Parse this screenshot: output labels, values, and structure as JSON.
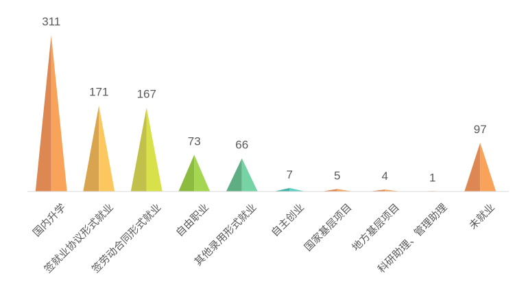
{
  "chart_data": {
    "type": "bar",
    "categories": [
      "国内升学",
      "签就业协议形式就业",
      "签劳动合同形式就业",
      "自由职业",
      "其他录用形式就业",
      "自主创业",
      "国家基层项目",
      "地方基层项目",
      "科研助理、管理助理",
      "未就业"
    ],
    "values": [
      311,
      171,
      167,
      73,
      66,
      7,
      5,
      4,
      1,
      97
    ],
    "value_labels": [
      "311",
      "171",
      "167",
      "73",
      "66",
      "7",
      "5",
      "4",
      "1",
      "97"
    ],
    "title": "",
    "xlabel": "",
    "ylabel": "",
    "ylim": [
      0,
      311
    ],
    "grid": false,
    "legend": "none",
    "colors": [
      {
        "light": "#f9a35a",
        "dark": "#dd8752"
      },
      {
        "light": "#fdc75f",
        "dark": "#d9a44f"
      },
      {
        "light": "#d9e14a",
        "dark": "#c1c04b"
      },
      {
        "light": "#a4d651",
        "dark": "#8dbb3f"
      },
      {
        "light": "#76d4a4",
        "dark": "#5fad82"
      },
      {
        "light": "#5fcfc2",
        "dark": "#47b3a8"
      },
      {
        "light": "#f9a35a",
        "dark": "#dd8752"
      },
      {
        "light": "#f9a35a",
        "dark": "#dd8752"
      },
      {
        "light": "#f9a35a",
        "dark": "#dd8752"
      },
      {
        "light": "#f9a35a",
        "dark": "#dd8752"
      }
    ],
    "axis_color": "#d9d9d9"
  }
}
